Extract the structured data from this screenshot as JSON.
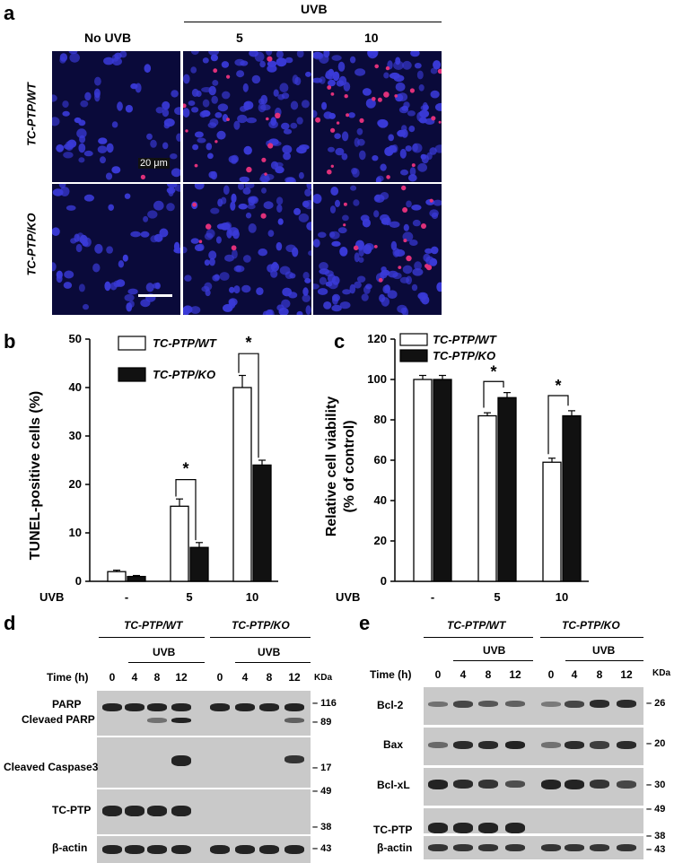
{
  "panel_a": {
    "label": "a",
    "uvb_header": "UVB",
    "col_headers": [
      "No UVB",
      "5",
      "10"
    ],
    "row_labels": [
      "TC-PTP/WT",
      "TC-PTP/KO"
    ],
    "scale_bar": "20 μm",
    "colors": {
      "nuclei": "#3a3ad8",
      "tunel": "#e0307a",
      "background": "#0a0a3a"
    }
  },
  "panel_b": {
    "label": "b",
    "ylabel": "TUNEL-positive cells (%)",
    "uvb_label": "UVB",
    "legend": [
      "TC-PTP/WT",
      "TC-PTP/KO"
    ],
    "sig": [
      "*",
      "*"
    ]
  },
  "panel_c": {
    "label": "c",
    "ylabel_line1": "Relative cell viability",
    "ylabel_line2": "(% of control)",
    "uvb_label": "UVB",
    "legend": [
      "TC-PTP/WT",
      "TC-PTP/KO"
    ],
    "sig": [
      "*",
      "*"
    ]
  },
  "chart_data": [
    {
      "type": "bar",
      "panel": "b",
      "categories": [
        "-",
        "5",
        "10"
      ],
      "series": [
        {
          "name": "TC-PTP/WT",
          "values": [
            2,
            15.5,
            40
          ],
          "errors": [
            0.3,
            1.5,
            2.5
          ],
          "color": "#ffffff"
        },
        {
          "name": "TC-PTP/KO",
          "values": [
            1,
            7,
            24
          ],
          "errors": [
            0.2,
            1.0,
            1.0
          ],
          "color": "#111111"
        }
      ],
      "ylim": [
        0,
        50
      ],
      "yticks": [
        "0",
        "10",
        "20",
        "30",
        "40",
        "50"
      ],
      "ylabel": "TUNEL-positive cells (%)",
      "xlabel": "UVB"
    },
    {
      "type": "bar",
      "panel": "c",
      "categories": [
        "-",
        "5",
        "10"
      ],
      "series": [
        {
          "name": "TC-PTP/WT",
          "values": [
            100,
            82,
            59
          ],
          "errors": [
            2,
            1.5,
            2
          ],
          "color": "#ffffff"
        },
        {
          "name": "TC-PTP/KO",
          "values": [
            100,
            91,
            82
          ],
          "errors": [
            2,
            2.5,
            2.5
          ],
          "color": "#111111"
        }
      ],
      "ylim": [
        0,
        120
      ],
      "yticks": [
        "0",
        "20",
        "40",
        "60",
        "80",
        "100",
        "120"
      ],
      "ylabel": "Relative cell viability (% of control)",
      "xlabel": "UVB"
    }
  ],
  "panel_d": {
    "label": "d",
    "groups": [
      "TC-PTP/WT",
      "TC-PTP/KO"
    ],
    "uvb": "UVB",
    "time_label": "Time (h)",
    "times": [
      "0",
      "4",
      "8",
      "12",
      "0",
      "4",
      "8",
      "12"
    ],
    "kda_label": "KDa",
    "rows": [
      "PARP",
      "Clevaed PARP",
      "Cleaved Caspase3",
      "TC-PTP",
      "β-actin"
    ],
    "markers": [
      "116",
      "89",
      "17",
      "49",
      "38",
      "43"
    ]
  },
  "panel_e": {
    "label": "e",
    "groups": [
      "TC-PTP/WT",
      "TC-PTP/KO"
    ],
    "uvb": "UVB",
    "time_label": "Time (h)",
    "times": [
      "0",
      "4",
      "8",
      "12",
      "0",
      "4",
      "8",
      "12"
    ],
    "kda_label": "KDa",
    "rows": [
      "Bcl-2",
      "Bax",
      "Bcl-xL",
      "TC-PTP",
      "β-actin"
    ],
    "markers": [
      "26",
      "20",
      "30",
      "49",
      "38",
      "43"
    ]
  }
}
